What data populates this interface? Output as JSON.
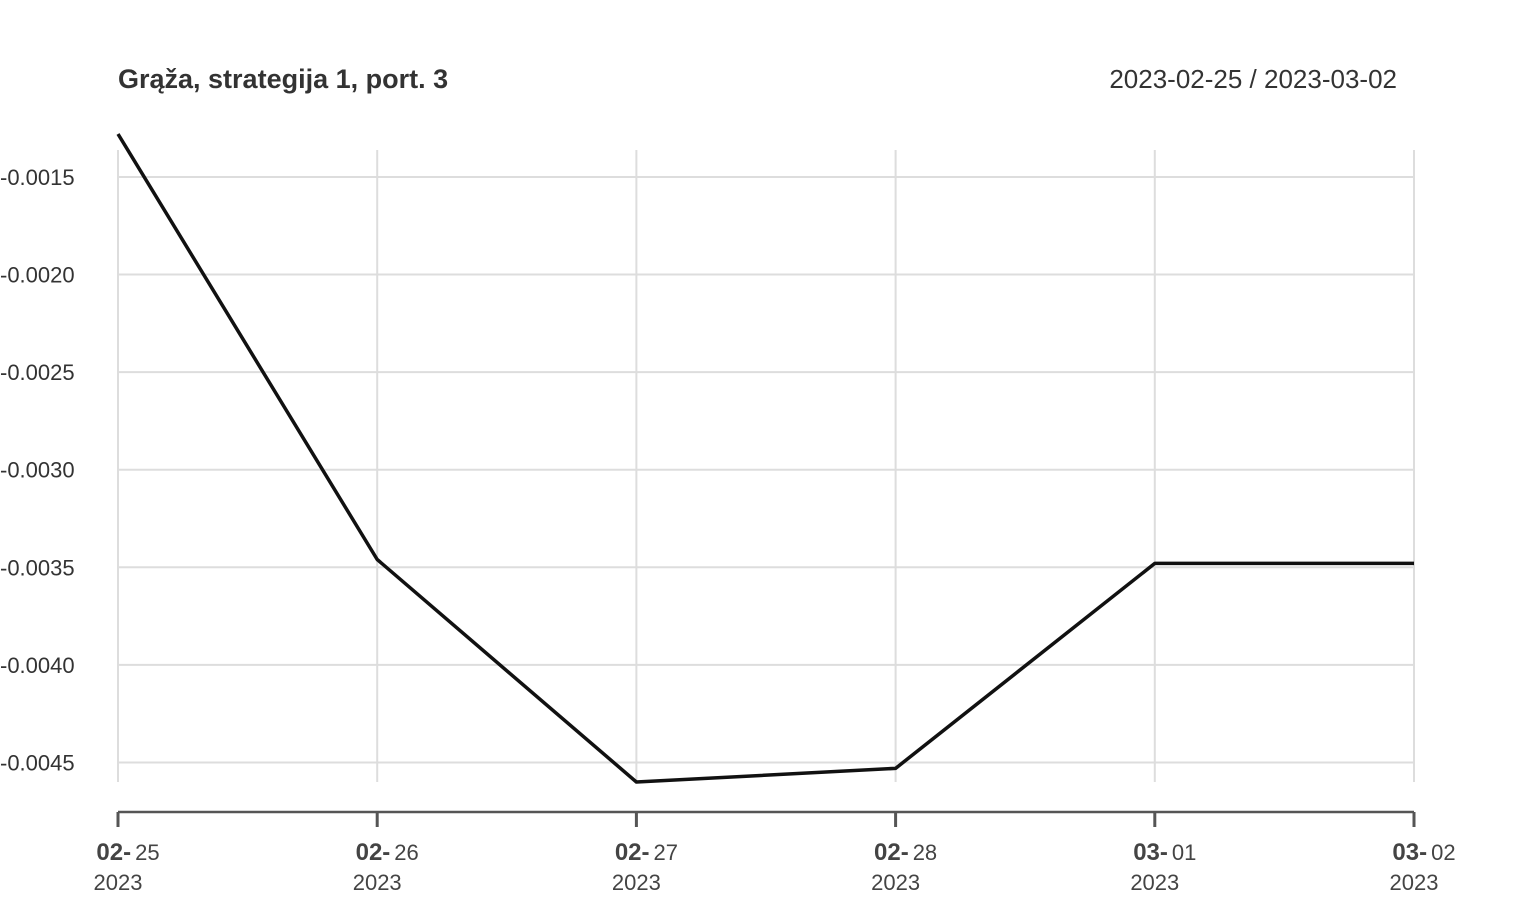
{
  "chart_data": {
    "type": "line",
    "title": "Grąža, strategija 1, port. 3",
    "date_range": "2023-02-25 / 2023-03-02",
    "x": [
      "2023-02-25",
      "2023-02-26",
      "2023-02-27",
      "2023-02-28",
      "2023-03-01",
      "2023-03-02"
    ],
    "x_tick_labels": [
      {
        "major": "02-",
        "minor": "25",
        "year": "2023"
      },
      {
        "major": "02-",
        "minor": "26",
        "year": "2023"
      },
      {
        "major": "02-",
        "minor": "27",
        "year": "2023"
      },
      {
        "major": "02-",
        "minor": "28",
        "year": "2023"
      },
      {
        "major": "03-",
        "minor": "01",
        "year": "2023"
      },
      {
        "major": "03-",
        "minor": "02",
        "year": "2023"
      }
    ],
    "series": [
      {
        "values": [
          -0.00128,
          -0.00346,
          -0.0046,
          -0.00453,
          -0.00348,
          -0.00348
        ],
        "color": "#111111"
      }
    ],
    "y_ticks": [
      -0.0015,
      -0.002,
      -0.0025,
      -0.003,
      -0.0035,
      -0.004,
      -0.0045
    ],
    "y_tick_labels": [
      "-0.0015",
      "-0.0020",
      "-0.0025",
      "-0.0030",
      "-0.0035",
      "-0.0040",
      "-0.0045"
    ],
    "ylim": [
      -0.0046,
      -0.00128
    ],
    "grid": true,
    "grid_color": "#dddddd",
    "axis_color": "#555555"
  }
}
